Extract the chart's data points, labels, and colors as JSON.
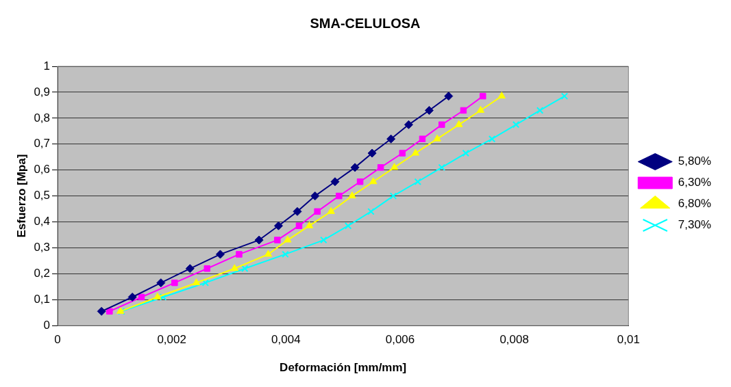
{
  "chart_data": {
    "type": "line",
    "title": "SMA-CELULOSA",
    "xlabel": "Deformación [mm/mm]",
    "ylabel": "Esfuerzo [Mpa]",
    "xlim": [
      0,
      0.01
    ],
    "xticks": [
      0,
      {
        "value": 0.002,
        "label": "0,002"
      },
      {
        "value": 0.004,
        "label": "0,004"
      },
      {
        "value": 0.006,
        "label": "0,006"
      },
      {
        "value": 0.008,
        "label": "0,008"
      },
      {
        "value": 0.01,
        "label": "0,01"
      }
    ],
    "ylim": [
      0,
      1
    ],
    "yticks": [
      0,
      {
        "value": 0.1,
        "label": "0,1"
      },
      {
        "value": 0.2,
        "label": "0,2"
      },
      {
        "value": 0.3,
        "label": "0,3"
      },
      {
        "value": 0.4,
        "label": "0,4"
      },
      {
        "value": 0.5,
        "label": "0,5"
      },
      {
        "value": 0.6,
        "label": "0,6"
      },
      {
        "value": 0.7,
        "label": "0,7"
      },
      {
        "value": 0.8,
        "label": "0,8"
      },
      {
        "value": 0.9,
        "label": "0,9"
      },
      1
    ],
    "grid": "y",
    "legend": "right",
    "line_style": "solid",
    "series": [
      {
        "name": "5,80%",
        "color": "#000080",
        "marker": "diamond",
        "x": [
          0.00077,
          0.00131,
          0.00181,
          0.00232,
          0.00285,
          0.00353,
          0.00387,
          0.0042,
          0.00451,
          0.00486,
          0.00521,
          0.00551,
          0.00584,
          0.00615,
          0.00651,
          0.00685
        ],
        "values": [
          0.055,
          0.11,
          0.165,
          0.22,
          0.275,
          0.33,
          0.385,
          0.44,
          0.5,
          0.555,
          0.61,
          0.665,
          0.72,
          0.775,
          0.83,
          0.885
        ]
      },
      {
        "name": "6,30%",
        "color": "#ff00ff",
        "marker": "square",
        "x": [
          0.00091,
          0.00147,
          0.00205,
          0.00262,
          0.00318,
          0.00385,
          0.00423,
          0.00455,
          0.00493,
          0.0053,
          0.00566,
          0.00604,
          0.00639,
          0.00673,
          0.00711,
          0.00745
        ],
        "values": [
          0.055,
          0.11,
          0.165,
          0.22,
          0.275,
          0.33,
          0.385,
          0.44,
          0.5,
          0.555,
          0.61,
          0.665,
          0.72,
          0.775,
          0.83,
          0.885
        ]
      },
      {
        "name": "6,80%",
        "color": "#ffff00",
        "marker": "triangle",
        "x": [
          0.0011,
          0.00175,
          0.00243,
          0.0031,
          0.00369,
          0.00403,
          0.00441,
          0.00479,
          0.00516,
          0.00553,
          0.0059,
          0.00627,
          0.00665,
          0.00703,
          0.00741,
          0.00778
        ],
        "values": [
          0.055,
          0.11,
          0.165,
          0.22,
          0.275,
          0.33,
          0.385,
          0.44,
          0.5,
          0.555,
          0.61,
          0.665,
          0.72,
          0.775,
          0.83,
          0.885
        ]
      },
      {
        "name": "7,30%",
        "color": "#00ffff",
        "marker": "cross",
        "x": [
          0.00112,
          0.00185,
          0.00259,
          0.00328,
          0.00399,
          0.00466,
          0.00509,
          0.00549,
          0.00588,
          0.00631,
          0.00673,
          0.00715,
          0.00761,
          0.00803,
          0.00845,
          0.00888
        ],
        "values": [
          0.055,
          0.11,
          0.165,
          0.22,
          0.275,
          0.33,
          0.385,
          0.44,
          0.5,
          0.555,
          0.61,
          0.665,
          0.72,
          0.775,
          0.83,
          0.885
        ]
      }
    ]
  }
}
